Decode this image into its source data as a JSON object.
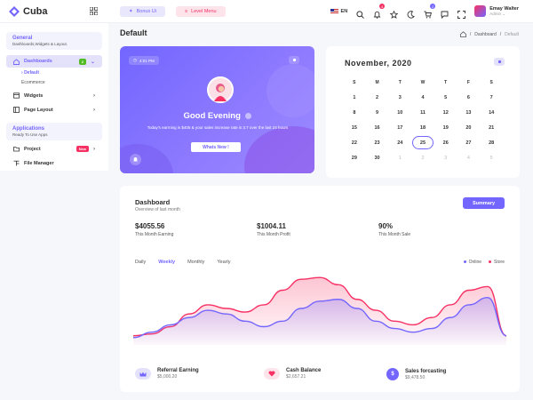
{
  "app": {
    "name": "Cuba"
  },
  "topbar": {
    "bonus_label": "Bonus Ui",
    "level_label": "Level Menu",
    "language": "EN",
    "notification_count": "4",
    "cart_count": "2",
    "user_name": "Emay Walter",
    "user_role": "Admin"
  },
  "sidebar": {
    "general_title": "General",
    "general_sub": "Dashboards,Widgets & Layout.",
    "dashboards_label": "Dashboards",
    "dashboards_badge": "2",
    "sub_default": "Default",
    "sub_ecommerce": "Ecommerce",
    "widgets_label": "Widgets",
    "page_layout_label": "Page Layout",
    "apps_title": "Applications",
    "apps_sub": "Ready To Use Apps",
    "project_label": "Project",
    "project_badge": "New",
    "file_manager_label": "File Manager"
  },
  "page": {
    "title": "Default",
    "crumb_1": "Dashboard",
    "crumb_2": "Default"
  },
  "greeting": {
    "time": "4:01 PM",
    "title": "Good Evening",
    "text": "Today's earrning is $405 & your sales increase rate is 3.7 over the last 24 hours",
    "button": "Whats New !"
  },
  "calendar": {
    "title": "November, 2020",
    "weekdays": [
      "S",
      "M",
      "T",
      "W",
      "T",
      "F",
      "S"
    ],
    "days": [
      "1",
      "2",
      "3",
      "4",
      "5",
      "6",
      "7",
      "8",
      "9",
      "10",
      "11",
      "12",
      "13",
      "14",
      "15",
      "16",
      "17",
      "18",
      "19",
      "20",
      "21",
      "22",
      "23",
      "24",
      "25",
      "26",
      "27",
      "28",
      "29",
      "30",
      "1",
      "2",
      "3",
      "4",
      "5"
    ],
    "today": "25"
  },
  "dashboard": {
    "title": "Dashboard",
    "subtitle": "Overview of last month",
    "summary_button": "Summary",
    "stats": [
      {
        "value": "$4055.56",
        "label": "This Month Earning"
      },
      {
        "value": "$1004.11",
        "label": "This Month Profit"
      },
      {
        "value": "90%",
        "label": "This Month Sale"
      }
    ],
    "tabs": [
      "Daily",
      "Weekly",
      "Monthly",
      "Yearly"
    ],
    "active_tab": "Weekly",
    "legend_online": "Online",
    "legend_store": "Store",
    "footer": [
      {
        "title": "Referral Earning",
        "value": "$5,000.20"
      },
      {
        "title": "Cash Balance",
        "value": "$2,657.21"
      },
      {
        "title": "Sales forcasting",
        "value": "$9,478.50"
      }
    ]
  },
  "chart_data": {
    "type": "area",
    "x": [
      0,
      1,
      2,
      3,
      4,
      5,
      6,
      7,
      8,
      9,
      10,
      11,
      12,
      13,
      14,
      15,
      16,
      17,
      18,
      19,
      20
    ],
    "series": [
      {
        "name": "Online",
        "values": [
          8,
          14,
          22,
          30,
          38,
          34,
          26,
          20,
          26,
          40,
          48,
          50,
          40,
          26,
          18,
          14,
          18,
          30,
          44,
          52,
          10
        ]
      },
      {
        "name": "Store",
        "values": [
          10,
          12,
          20,
          34,
          44,
          40,
          36,
          44,
          60,
          72,
          74,
          66,
          50,
          38,
          26,
          22,
          30,
          44,
          60,
          64,
          10
        ]
      }
    ],
    "colors": {
      "online": "#7366ff",
      "store": "#f73164"
    }
  }
}
